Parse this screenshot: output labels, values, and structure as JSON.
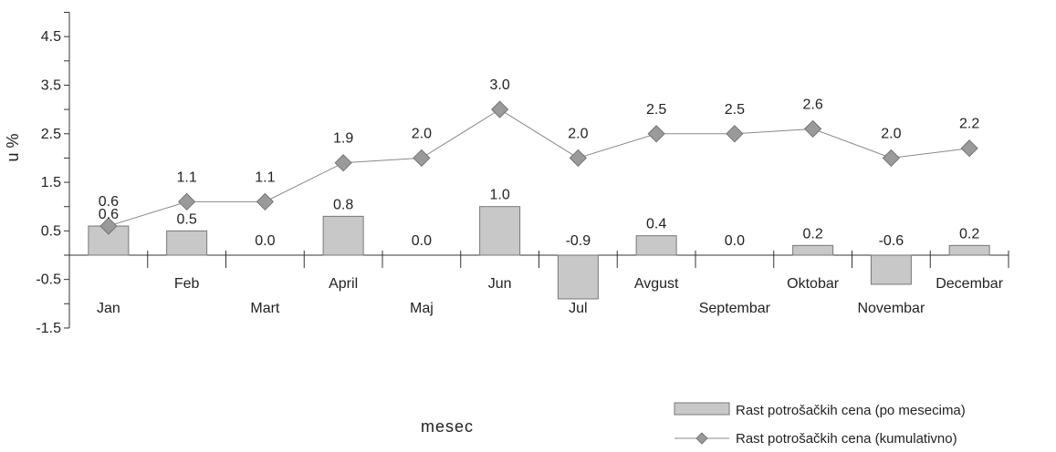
{
  "chart_data": {
    "type": "bar",
    "title": "",
    "xlabel": "mesec",
    "ylabel": "u %",
    "ylim": [
      -1.5,
      5.0
    ],
    "yticks": [
      4.5,
      3.5,
      2.5,
      1.5,
      0.5,
      -0.5,
      -1.5
    ],
    "categories": [
      "Jan",
      "Feb",
      "Mart",
      "April",
      "Maj",
      "Jun",
      "Jul",
      "Avgust",
      "Septembar",
      "Oktobar",
      "Novembar",
      "Decembar"
    ],
    "series": [
      {
        "name": "Rast potrošačkih cena (po mesecima)",
        "type": "bar",
        "values": [
          0.6,
          0.5,
          0.0,
          0.8,
          0.0,
          1.0,
          -0.9,
          0.4,
          0.0,
          0.2,
          -0.6,
          0.2
        ],
        "labels": [
          "0.6",
          "0.5",
          "0.0",
          "0.8",
          "0.0",
          "1.0",
          "-0.9",
          "0.4",
          "0.0",
          "0.2",
          "-0.6",
          "0.2"
        ]
      },
      {
        "name": "Rast potrošačkih cena (kumulativno)",
        "type": "line",
        "values": [
          0.6,
          1.1,
          1.1,
          1.9,
          2.0,
          3.0,
          2.0,
          2.5,
          2.5,
          2.6,
          2.0,
          2.2
        ],
        "labels": [
          "0.6",
          "1.1",
          "1.1",
          "1.9",
          "2.0",
          "3.0",
          "2.0",
          "2.5",
          "2.5",
          "2.6",
          "2.0",
          "2.2"
        ]
      }
    ],
    "legend_position": "bottom-right",
    "colors": {
      "bar_fill": "#c8c8c8",
      "bar_stroke": "#777777",
      "line": "#888888",
      "marker": "#9a9a9a",
      "axis": "#333333"
    }
  }
}
